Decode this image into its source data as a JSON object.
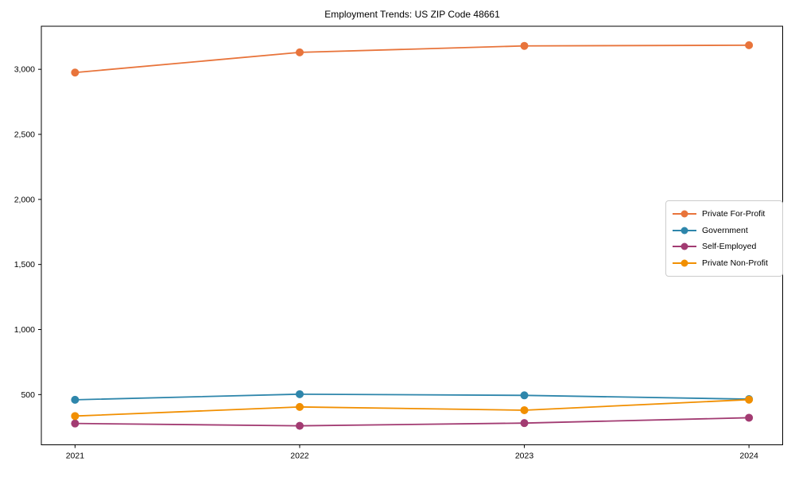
{
  "chart_data": {
    "type": "line",
    "title": "Employment Trends: US ZIP Code 48661",
    "xlabel": "",
    "ylabel": "",
    "x": [
      2021,
      2022,
      2023,
      2024
    ],
    "x_tick_labels": [
      "2021",
      "2022",
      "2023",
      "2024"
    ],
    "xlim": [
      2020.85,
      2024.15
    ],
    "ylim": [
      114,
      3331
    ],
    "yticks": [
      500,
      1000,
      1500,
      2000,
      2500,
      3000
    ],
    "y_tick_labels": [
      "500",
      "1,000",
      "1,500",
      "2,000",
      "2,500",
      "3,000"
    ],
    "grid": false,
    "legend_position": "center-right",
    "background": "#ffffff",
    "axis_color": "#000000",
    "series": [
      {
        "name": "Private For-Profit",
        "color": "#E8743B",
        "values": [
          2975,
          3130,
          3180,
          3185
        ]
      },
      {
        "name": "Government",
        "color": "#2E86AB",
        "values": [
          460,
          503,
          494,
          465
        ]
      },
      {
        "name": "Self-Employed",
        "color": "#A23B72",
        "values": [
          278,
          260,
          281,
          322
        ]
      },
      {
        "name": "Private Non-Profit",
        "color": "#F18F01",
        "values": [
          335,
          405,
          380,
          461
        ]
      }
    ]
  }
}
